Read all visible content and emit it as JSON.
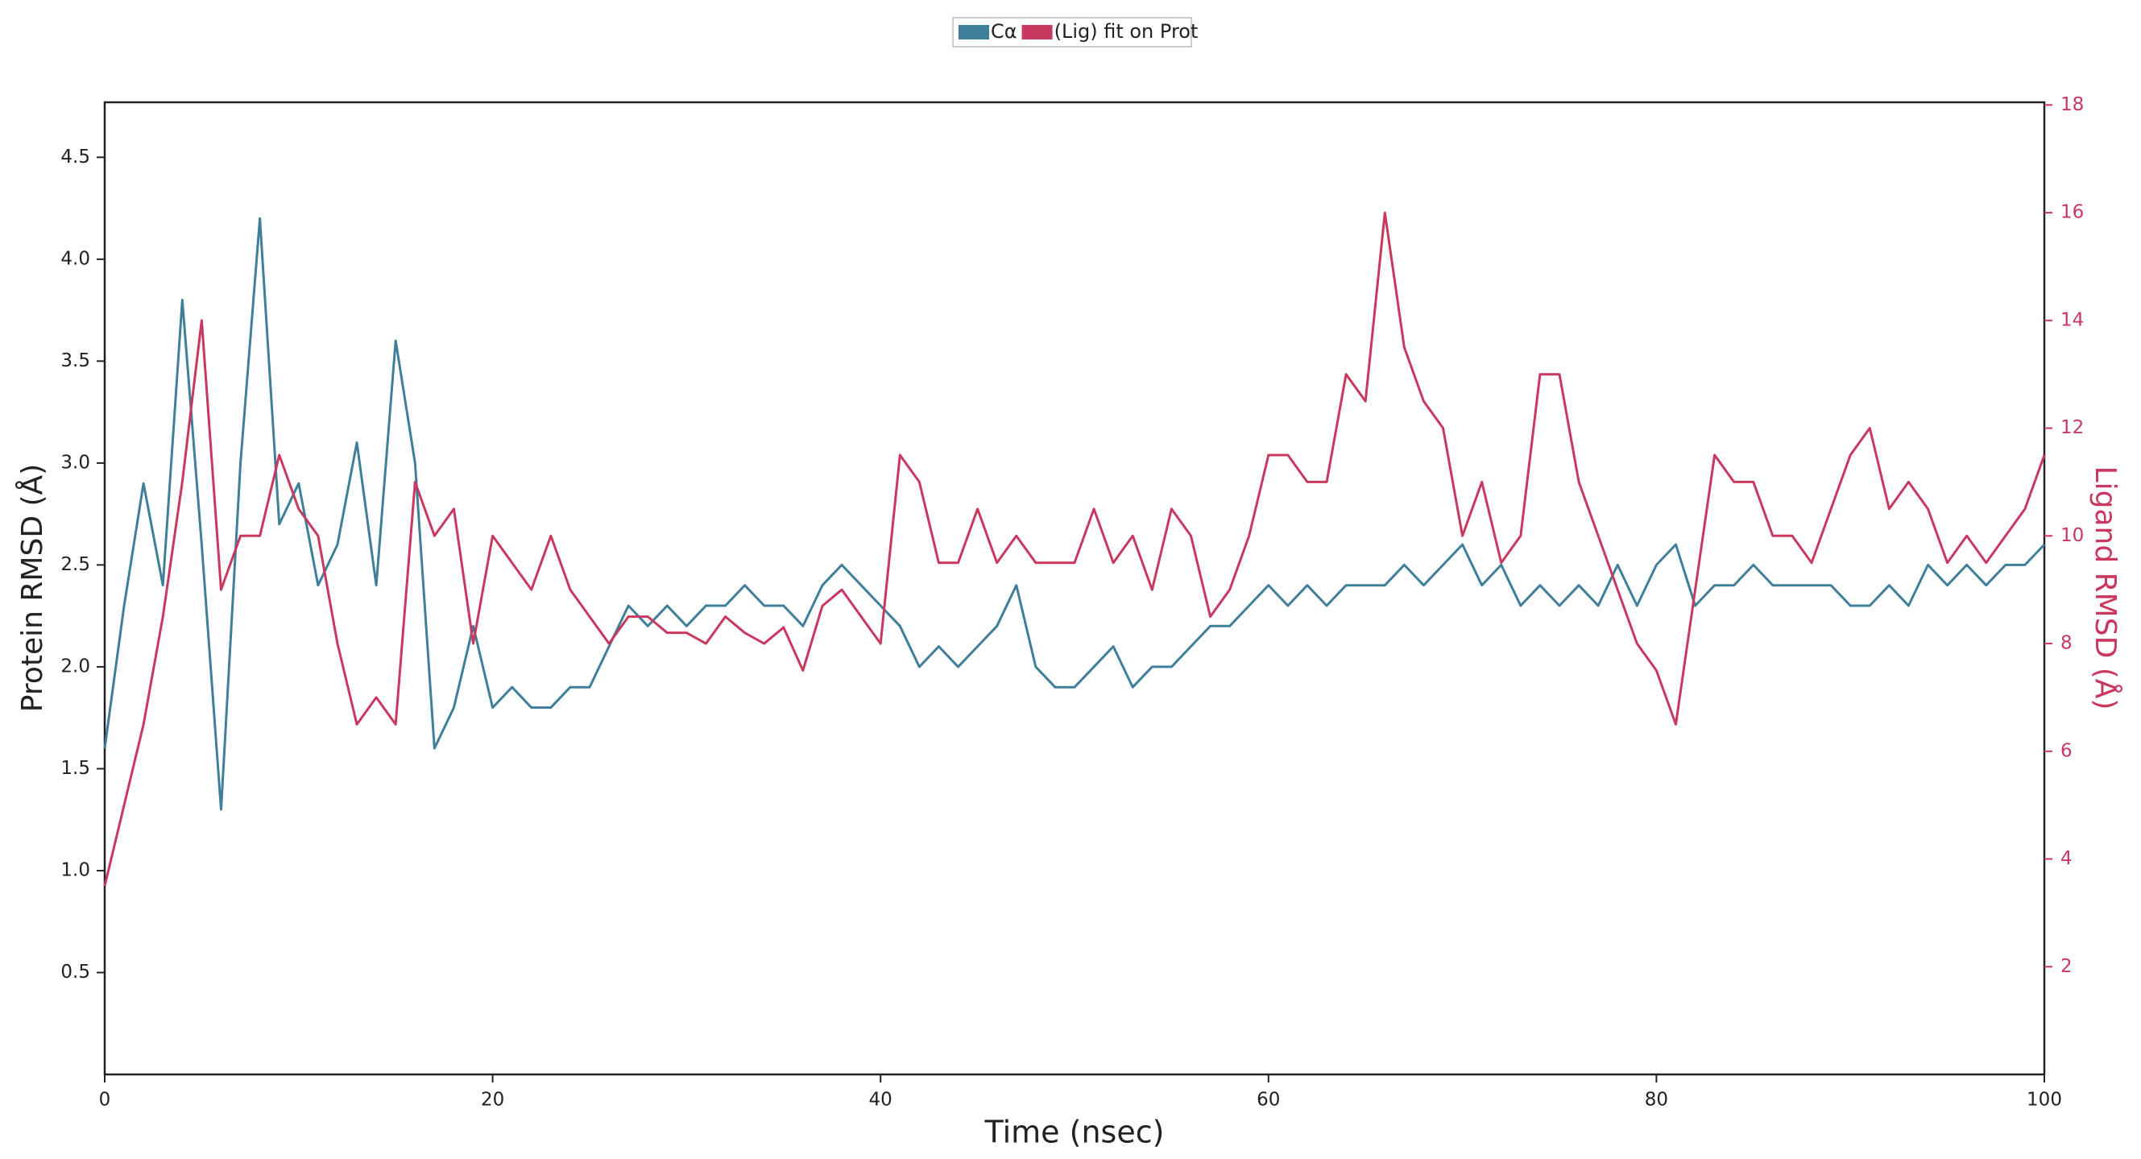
{
  "chart_data": {
    "type": "line",
    "xlabel": "Time (nsec)",
    "ylabel": "Protein RMSD (Å)",
    "y2label": "Ligand RMSD (Å)",
    "x": [
      0,
      1,
      2,
      3,
      4,
      5,
      6,
      7,
      8,
      9,
      10,
      11,
      12,
      13,
      14,
      15,
      16,
      17,
      18,
      19,
      20,
      21,
      22,
      23,
      24,
      25,
      26,
      27,
      28,
      29,
      30,
      31,
      32,
      33,
      34,
      35,
      36,
      37,
      38,
      39,
      40,
      41,
      42,
      43,
      44,
      45,
      46,
      47,
      48,
      49,
      50,
      51,
      52,
      53,
      54,
      55,
      56,
      57,
      58,
      59,
      60,
      61,
      62,
      63,
      64,
      65,
      66,
      67,
      68,
      69,
      70,
      71,
      72,
      73,
      74,
      75,
      76,
      77,
      78,
      79,
      80,
      81,
      82,
      83,
      84,
      85,
      86,
      87,
      88,
      89,
      90,
      91,
      92,
      93,
      94,
      95,
      96,
      97,
      98,
      99,
      100
    ],
    "series": [
      {
        "name": "Cα",
        "color": "#3f7f99",
        "axis": "y",
        "values": [
          1.6,
          2.3,
          2.9,
          2.4,
          3.8,
          2.6,
          1.3,
          3.0,
          4.2,
          2.7,
          2.9,
          2.4,
          2.6,
          3.1,
          2.4,
          3.6,
          3.0,
          1.6,
          1.8,
          2.2,
          1.8,
          1.9,
          1.8,
          1.8,
          1.9,
          1.9,
          2.1,
          2.3,
          2.2,
          2.3,
          2.2,
          2.3,
          2.3,
          2.4,
          2.3,
          2.3,
          2.2,
          2.4,
          2.5,
          2.4,
          2.3,
          2.2,
          2.0,
          2.1,
          2.0,
          2.1,
          2.2,
          2.4,
          2.0,
          1.9,
          1.9,
          2.0,
          2.1,
          1.9,
          2.0,
          2.0,
          2.1,
          2.2,
          2.2,
          2.3,
          2.4,
          2.3,
          2.4,
          2.3,
          2.4,
          2.4,
          2.4,
          2.5,
          2.4,
          2.5,
          2.6,
          2.4,
          2.5,
          2.3,
          2.4,
          2.3,
          2.4,
          2.3,
          2.5,
          2.3,
          2.5,
          2.6,
          2.3,
          2.4,
          2.4,
          2.5,
          2.4,
          2.4,
          2.4,
          2.4,
          2.3,
          2.3,
          2.4,
          2.3,
          2.5,
          2.4,
          2.5,
          2.4,
          2.5,
          2.5,
          2.6
        ]
      },
      {
        "name": "(Lig) fit on Prot",
        "color": "#c8385f",
        "axis": "y2",
        "values": [
          3.5,
          5.0,
          6.5,
          8.5,
          11,
          14,
          9,
          10,
          10,
          11.5,
          10.5,
          10,
          8,
          6.5,
          7,
          6.5,
          11,
          10,
          10.5,
          8,
          10,
          9.5,
          9,
          10,
          9,
          8.5,
          8,
          8.5,
          8.5,
          8.2,
          8.2,
          8.0,
          8.5,
          8.2,
          8.0,
          8.3,
          7.5,
          8.7,
          9,
          8.5,
          8.0,
          11.5,
          11,
          9.5,
          9.5,
          10.5,
          9.5,
          10,
          9.5,
          9.5,
          9.5,
          10.5,
          9.5,
          10,
          9,
          10.5,
          10,
          8.5,
          9,
          10,
          11.5,
          11.5,
          11,
          11,
          13,
          12.5,
          16,
          13.5,
          12.5,
          12,
          10,
          11,
          9.5,
          10,
          13,
          13,
          11,
          10,
          9,
          8,
          7.5,
          6.5,
          9,
          11.5,
          11,
          11,
          10,
          10,
          9.5,
          10.5,
          11.5,
          12,
          10.5,
          11,
          10.5,
          9.5,
          10,
          9.5,
          10,
          10.5,
          11.5
        ]
      }
    ],
    "xlim": [
      0,
      100
    ],
    "xticks": [
      0,
      20,
      40,
      60,
      80,
      100
    ],
    "ylim": [
      0,
      4.77
    ],
    "yticks": [
      0.5,
      {
        "value": 1,
        "label": "1.0"
      },
      1.5,
      {
        "value": 2,
        "label": "2.0"
      },
      2.5,
      {
        "value": 3,
        "label": "3.0"
      },
      3.5,
      {
        "value": 4,
        "label": "4.0"
      },
      4.5
    ],
    "y2lim": [
      0,
      18.05
    ],
    "y2ticks": [
      2,
      4,
      6,
      8,
      10,
      12,
      14,
      16,
      18
    ],
    "y2color": "#c8385f"
  }
}
